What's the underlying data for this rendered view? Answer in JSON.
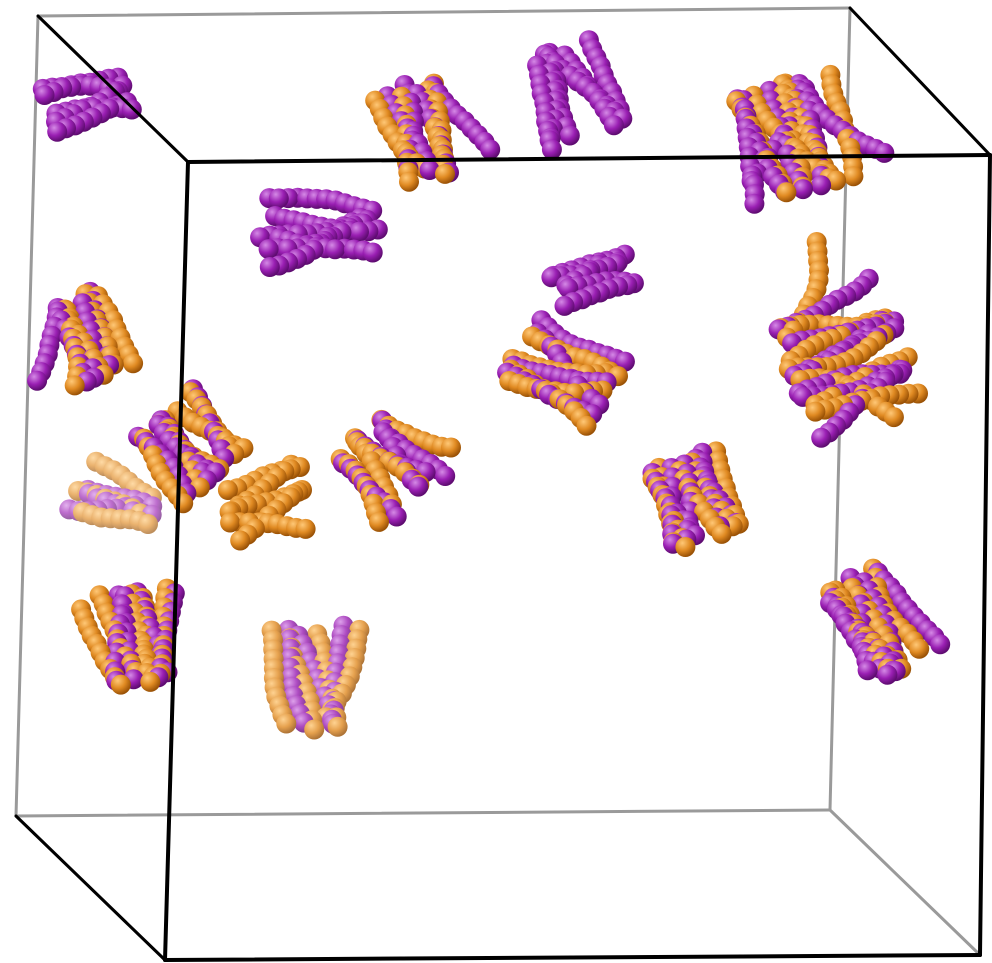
{
  "scene": {
    "background": "#ffffff",
    "box_front_color": "#000000",
    "box_back_color": "#9a9a9a",
    "species": [
      {
        "key": "purple",
        "color": "#9a1fb3",
        "highlight": "#d58ae6",
        "shade": "#5e0c70"
      },
      {
        "key": "orange",
        "color": "#e08a22",
        "highlight": "#ffc877",
        "shade": "#9a5206"
      }
    ],
    "clusters": [
      {
        "id": "c1",
        "composition": [
          "purple"
        ]
      },
      {
        "id": "c2",
        "composition": [
          "purple",
          "orange"
        ]
      },
      {
        "id": "c3",
        "composition": [
          "purple"
        ]
      },
      {
        "id": "c4",
        "composition": [
          "orange",
          "purple"
        ]
      },
      {
        "id": "c5",
        "composition": [
          "purple"
        ]
      },
      {
        "id": "c6",
        "composition": [
          "orange",
          "purple"
        ]
      },
      {
        "id": "c7",
        "composition": [
          "purple"
        ]
      },
      {
        "id": "c8",
        "composition": [
          "purple",
          "orange"
        ]
      },
      {
        "id": "c9",
        "composition": [
          "orange",
          "purple"
        ]
      },
      {
        "id": "c10",
        "composition": [
          "orange",
          "purple"
        ]
      },
      {
        "id": "c11",
        "composition": [
          "orange",
          "purple"
        ]
      },
      {
        "id": "c12",
        "composition": [
          "orange"
        ]
      },
      {
        "id": "c13",
        "composition": [
          "purple",
          "orange"
        ]
      },
      {
        "id": "c14",
        "composition": [
          "orange",
          "purple"
        ]
      },
      {
        "id": "c15",
        "composition": [
          "orange",
          "purple"
        ]
      },
      {
        "id": "c16",
        "composition": [
          "purple",
          "orange"
        ]
      },
      {
        "id": "c17",
        "composition": [
          "orange",
          "purple"
        ]
      }
    ]
  }
}
